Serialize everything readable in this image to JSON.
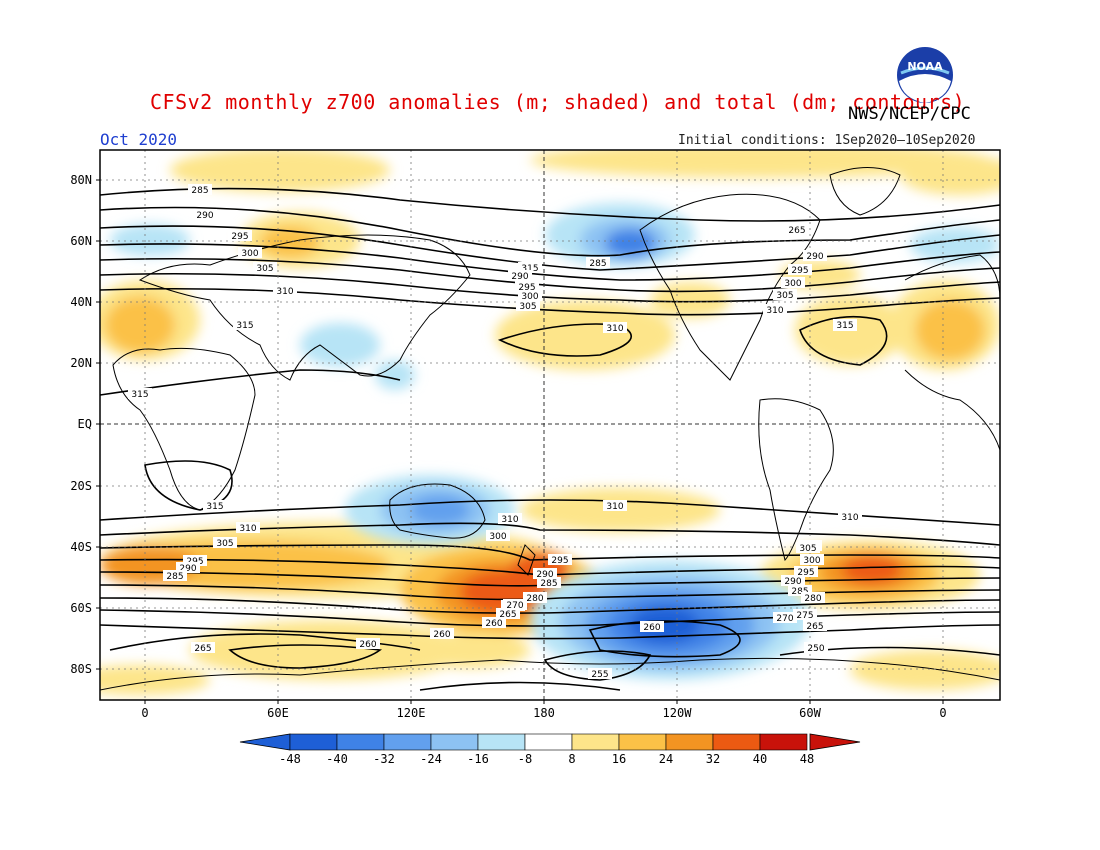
{
  "header": {
    "title": "CFSv2 monthly z700 anomalies (m; shaded) and total (dm; contours)",
    "agency": "NWS/NCEP/CPC",
    "month": "Oct 2020",
    "initial_conditions": "Initial conditions: 1Sep2020–10Sep2020",
    "logo_text": "NOAA"
  },
  "map": {
    "projection": "cylindrical equidistant",
    "lon_range": [
      -20,
      340
    ],
    "lat_range": [
      -90,
      90
    ],
    "lat_labels": [
      "80N",
      "60N",
      "40N",
      "20N",
      "EQ",
      "20S",
      "40S",
      "60S",
      "80S"
    ],
    "lon_labels": [
      "0",
      "60E",
      "120E",
      "180",
      "120W",
      "60W",
      "0"
    ],
    "contour_labels": [
      "285",
      "290",
      "295",
      "300",
      "305",
      "310",
      "315",
      "315",
      "290",
      "295",
      "300",
      "305",
      "310",
      "315",
      "285",
      "265",
      "290",
      "295",
      "300",
      "305",
      "310",
      "315",
      "315",
      "315",
      "310",
      "310",
      "305",
      "300",
      "310",
      "295",
      "290",
      "285",
      "280",
      "275",
      "270",
      "265",
      "260",
      "300",
      "295",
      "290",
      "285",
      "310",
      "305",
      "300",
      "295",
      "290",
      "285",
      "280",
      "275",
      "270",
      "265",
      "260",
      "255",
      "250",
      "260",
      "265",
      "260"
    ],
    "colors": {
      "neg48": "#1e5fd6",
      "neg40": "#3f82e6",
      "neg32": "#62a0ee",
      "neg24": "#8dc2f3",
      "neg16": "#b7e4f6",
      "neg8": "#ffffff",
      "pos8": "#ffffff",
      "pos16": "#fde58a",
      "pos24": "#fbc147",
      "pos32": "#f39422",
      "pos40": "#ec5a12",
      "pos48": "#c8120a"
    }
  },
  "colorbar": {
    "labels": [
      "-48",
      "-40",
      "-32",
      "-24",
      "-16",
      "-8",
      "8",
      "16",
      "24",
      "32",
      "40",
      "48"
    ],
    "colors": [
      "#1e5fd6",
      "#3f82e6",
      "#62a0ee",
      "#8dc2f3",
      "#b7e4f6",
      "#ffffff",
      "#fde58a",
      "#fbc147",
      "#f39422",
      "#ec5a12",
      "#c8120a"
    ]
  }
}
